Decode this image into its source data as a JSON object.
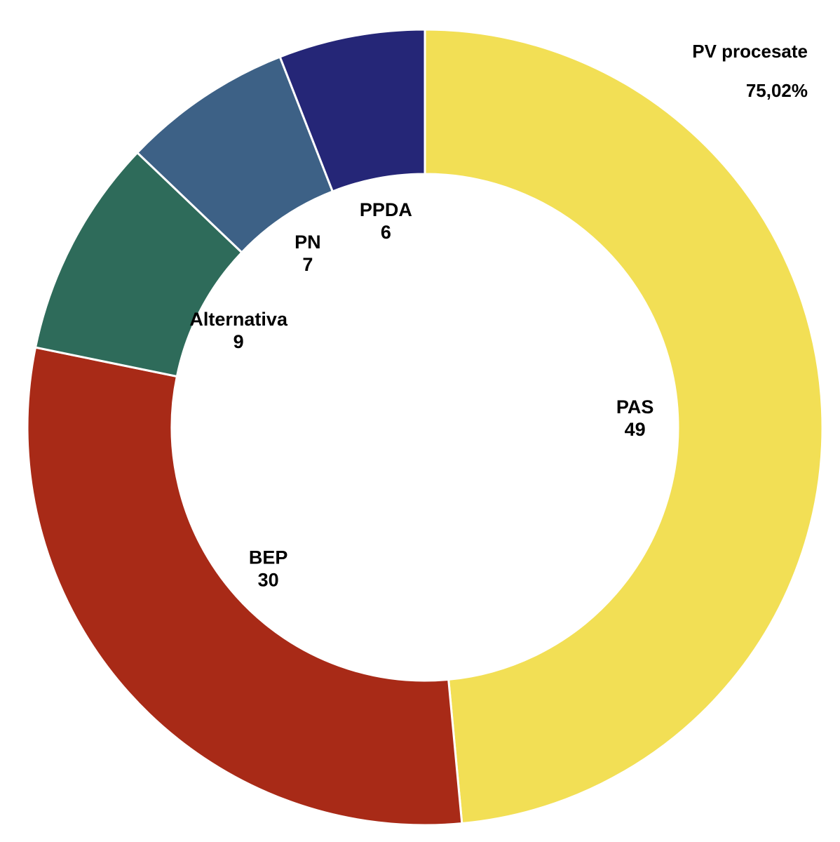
{
  "header": {
    "label": "PV procesate",
    "value": "75,02%"
  },
  "chart_data": {
    "type": "pie",
    "style": "donut",
    "categories": [
      "PAS",
      "BEP",
      "Alternativa",
      "PN",
      "PPDA"
    ],
    "values": [
      49,
      30,
      9,
      7,
      6
    ],
    "colors": [
      "#f2df55",
      "#a82a17",
      "#2e6b5a",
      "#3d6186",
      "#252677"
    ],
    "legend": "none",
    "start": "top",
    "direction": "clockwise"
  }
}
